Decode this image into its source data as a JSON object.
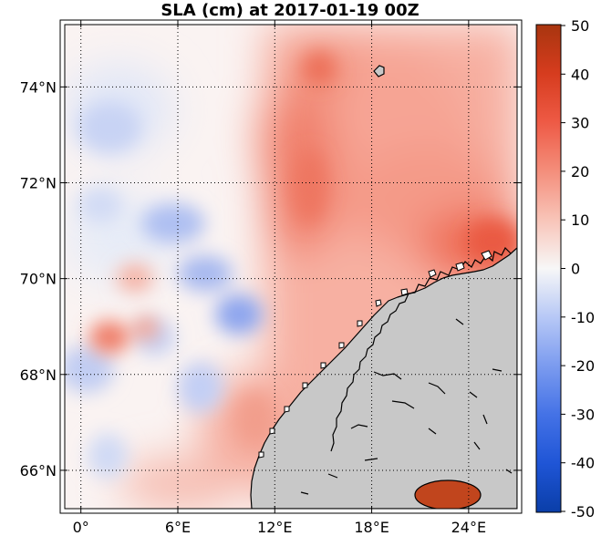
{
  "title": "SLA (cm) at 2017-01-19 00Z",
  "map": {
    "lon_range": [
      -1,
      27
    ],
    "lat_range": [
      65.2,
      75.3
    ],
    "x_ticks": [
      {
        "value": 0,
        "label": "0°"
      },
      {
        "value": 6,
        "label": "6°E"
      },
      {
        "value": 12,
        "label": "12°E"
      },
      {
        "value": 18,
        "label": "18°E"
      },
      {
        "value": 24,
        "label": "24°E"
      }
    ],
    "y_ticks": [
      {
        "value": 66,
        "label": "66°N"
      },
      {
        "value": 68,
        "label": "68°N"
      },
      {
        "value": 70,
        "label": "70°N"
      },
      {
        "value": 72,
        "label": "72°N"
      },
      {
        "value": 74,
        "label": "74°N"
      }
    ],
    "land_color": "#c8c8c8",
    "grid": "dotted"
  },
  "colorbar": {
    "min": -50,
    "max": 50,
    "colormap": "blue-white-red",
    "ticks": [
      {
        "value": 50,
        "label": "50"
      },
      {
        "value": 40,
        "label": "40"
      },
      {
        "value": 30,
        "label": "30"
      },
      {
        "value": 20,
        "label": "20"
      },
      {
        "value": 10,
        "label": "10"
      },
      {
        "value": 0,
        "label": "0"
      },
      {
        "value": -10,
        "label": "-10"
      },
      {
        "value": -20,
        "label": "-20"
      },
      {
        "value": -30,
        "label": "-30"
      },
      {
        "value": -40,
        "label": "-40"
      },
      {
        "value": -50,
        "label": "-50"
      }
    ]
  }
}
